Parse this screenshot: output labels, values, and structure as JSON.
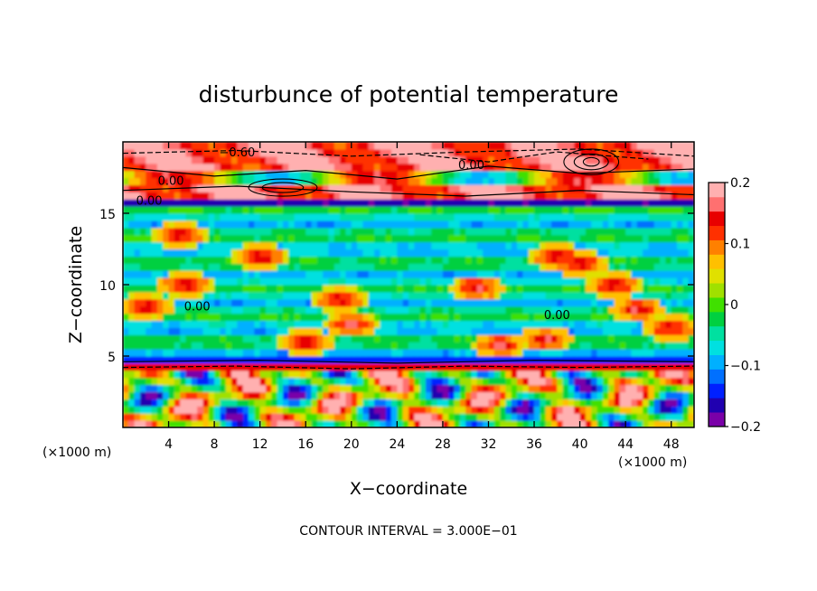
{
  "chart_data": {
    "type": "heatmap",
    "title": "disturbunce of potential temperature",
    "xlabel": "X−coordinate",
    "ylabel": "Z−coordinate",
    "x_unit": "(×1000 m)",
    "x_unit_right": "(×1000 m)",
    "xlim": [
      0,
      50
    ],
    "ylim": [
      0,
      20
    ],
    "x_ticks": [
      "4",
      "8",
      "12",
      "16",
      "20",
      "24",
      "28",
      "32",
      "36",
      "40",
      "44",
      "48"
    ],
    "x_tick_values": [
      4,
      8,
      12,
      16,
      20,
      24,
      28,
      32,
      36,
      40,
      44,
      48
    ],
    "y_ticks": [
      "5",
      "10",
      "15"
    ],
    "y_tick_values": [
      5,
      10,
      15
    ],
    "colorbar": {
      "range": [
        -0.2,
        0.2
      ],
      "tick_labels": [
        "0.2",
        "0.1",
        "0",
        "−0.1",
        "−0.2"
      ],
      "tick_values": [
        0.2,
        0.1,
        0,
        -0.1,
        -0.2
      ],
      "colors": [
        "#7a00a8",
        "#2000b0",
        "#0020ff",
        "#0070ff",
        "#00b0ff",
        "#00e0e0",
        "#00e0a0",
        "#00d040",
        "#40e000",
        "#a0e000",
        "#e0e000",
        "#ffc000",
        "#ff8000",
        "#ff3000",
        "#e80000",
        "#ff7070",
        "#ffb0b0"
      ]
    },
    "contour_labels": [
      {
        "text": "−0.60",
        "x": 10.0,
        "y": 19.0
      },
      {
        "text": "0.00",
        "x": 30.5,
        "y": 18.1
      },
      {
        "text": "0.00",
        "x": 4.2,
        "y": 17.0
      },
      {
        "text": "0.00",
        "x": 2.3,
        "y": 15.6
      },
      {
        "text": "0.00",
        "x": 6.5,
        "y": 8.2
      },
      {
        "text": "0.00",
        "x": 38.0,
        "y": 7.6
      }
    ],
    "contour_interval_text": "CONTOUR INTERVAL = 3.000E−01"
  }
}
